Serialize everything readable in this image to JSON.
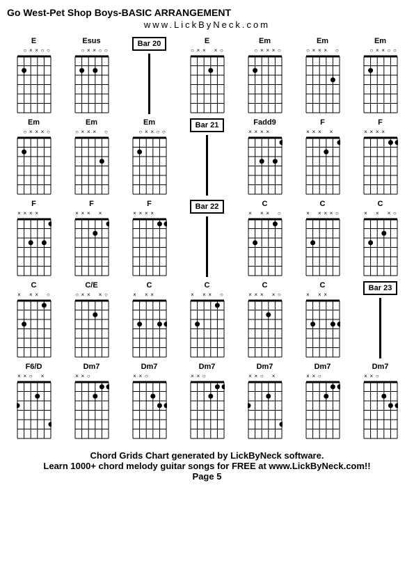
{
  "title": "Go West-Pet Shop Boys-BASIC ARRANGEMENT",
  "subtitle": "www.LickByNeck.com",
  "footer_line1": "Chord Grids Chart generated by LickByNeck software.",
  "footer_line2": "Learn 1000+ chord melody guitar songs for FREE at www.LickByNeck.com!!",
  "footer_page": "Page 5",
  "style": {
    "bg": "#ffffff",
    "fg": "#000000",
    "grid_cols": 7,
    "grid_rows": 5,
    "fret_width": 50,
    "fret_height": 85,
    "string_count": 6,
    "fret_count": 6,
    "dot_radius": 3.5,
    "marker_open": "○",
    "marker_mute": "×",
    "marker_dot": "●"
  },
  "cells": [
    {
      "type": "chord",
      "label": "E",
      "markers": [
        "",
        "o",
        "x",
        "x",
        "o",
        "o"
      ],
      "dots": [
        [
          2,
          2
        ]
      ]
    },
    {
      "type": "chord",
      "label": "Esus",
      "markers": [
        "",
        "o",
        "x",
        "x",
        "o",
        "o"
      ],
      "dots": [
        [
          2,
          2
        ],
        [
          2,
          4
        ]
      ]
    },
    {
      "type": "bar",
      "label": "Bar 20"
    },
    {
      "type": "chord",
      "label": "E",
      "markers": [
        "o",
        "x",
        "x",
        "",
        "x",
        "o"
      ],
      "dots": [
        [
          2,
          4
        ]
      ]
    },
    {
      "type": "chord",
      "label": "Em",
      "markers": [
        "",
        "o",
        "x",
        "x",
        "x",
        "o"
      ],
      "dots": [
        [
          2,
          2
        ]
      ]
    },
    {
      "type": "chord",
      "label": "Em",
      "markers": [
        "o",
        "x",
        "x",
        "x",
        "",
        "o"
      ],
      "dots": [
        [
          3,
          5
        ]
      ]
    },
    {
      "type": "chord",
      "label": "Em",
      "markers": [
        "",
        "o",
        "x",
        "x",
        "o",
        "o"
      ],
      "dots": [
        [
          2,
          2
        ]
      ]
    },
    {
      "type": "chord",
      "label": "Em",
      "markers": [
        "",
        "o",
        "x",
        "x",
        "x",
        "o"
      ],
      "dots": [
        [
          2,
          2
        ]
      ]
    },
    {
      "type": "chord",
      "label": "Em",
      "markers": [
        "o",
        "x",
        "x",
        "x",
        "",
        "o"
      ],
      "dots": [
        [
          3,
          5
        ]
      ]
    },
    {
      "type": "chord",
      "label": "Em",
      "markers": [
        "",
        "o",
        "x",
        "x",
        "o",
        "o"
      ],
      "dots": [
        [
          2,
          2
        ]
      ]
    },
    {
      "type": "bar",
      "label": "Bar 21"
    },
    {
      "type": "chord",
      "label": "Fadd9",
      "markers": [
        "x",
        "x",
        "x",
        "x",
        "",
        ""
      ],
      "dots": [
        [
          1,
          6
        ],
        [
          3,
          5
        ],
        [
          3,
          3
        ]
      ]
    },
    {
      "type": "chord",
      "label": "F",
      "markers": [
        "x",
        "x",
        "x",
        "",
        "x",
        ""
      ],
      "dots": [
        [
          1,
          6
        ],
        [
          2,
          4
        ]
      ]
    },
    {
      "type": "chord",
      "label": "F",
      "markers": [
        "x",
        "x",
        "x",
        "x",
        "",
        ""
      ],
      "dots": [
        [
          1,
          6
        ],
        [
          1,
          5
        ]
      ]
    },
    {
      "type": "chord",
      "label": "F",
      "markers": [
        "x",
        "x",
        "x",
        "x",
        "",
        ""
      ],
      "dots": [
        [
          1,
          6
        ],
        [
          3,
          5
        ],
        [
          3,
          3
        ]
      ]
    },
    {
      "type": "chord",
      "label": "F",
      "markers": [
        "x",
        "x",
        "x",
        "",
        "x",
        ""
      ],
      "dots": [
        [
          1,
          6
        ],
        [
          2,
          4
        ]
      ]
    },
    {
      "type": "chord",
      "label": "F",
      "markers": [
        "x",
        "x",
        "x",
        "x",
        "",
        ""
      ],
      "dots": [
        [
          1,
          6
        ],
        [
          1,
          5
        ]
      ]
    },
    {
      "type": "bar",
      "label": "Bar 22"
    },
    {
      "type": "chord",
      "label": "C",
      "markers": [
        "x",
        "",
        "x",
        "x",
        "",
        "o"
      ],
      "dots": [
        [
          3,
          2
        ],
        [
          1,
          5
        ]
      ]
    },
    {
      "type": "chord",
      "label": "C",
      "markers": [
        "x",
        "",
        "x",
        "x",
        "x",
        "o"
      ],
      "dots": [
        [
          3,
          2
        ]
      ]
    },
    {
      "type": "chord",
      "label": "C",
      "markers": [
        "x",
        "",
        "x",
        "",
        "x",
        "o"
      ],
      "dots": [
        [
          3,
          2
        ],
        [
          2,
          4
        ]
      ]
    },
    {
      "type": "chord",
      "label": "C",
      "markers": [
        "x",
        "",
        "x",
        "x",
        "",
        "o"
      ],
      "dots": [
        [
          3,
          2
        ],
        [
          1,
          5
        ]
      ]
    },
    {
      "type": "chord",
      "label": "C/E",
      "markers": [
        "o",
        "x",
        "x",
        "",
        "x",
        "o"
      ],
      "dots": [
        [
          2,
          4
        ]
      ]
    },
    {
      "type": "chord",
      "label": "C",
      "markers": [
        "x",
        "",
        "x",
        "x",
        "",
        ""
      ],
      "dots": [
        [
          3,
          2
        ],
        [
          3,
          5
        ],
        [
          3,
          6
        ]
      ]
    },
    {
      "type": "chord",
      "label": "C",
      "markers": [
        "x",
        "",
        "x",
        "x",
        "",
        "o"
      ],
      "dots": [
        [
          3,
          2
        ],
        [
          1,
          5
        ]
      ]
    },
    {
      "type": "chord",
      "label": "C",
      "markers": [
        "x",
        "x",
        "x",
        "",
        "x",
        "o"
      ],
      "dots": [
        [
          2,
          4
        ]
      ]
    },
    {
      "type": "chord",
      "label": "C",
      "markers": [
        "x",
        "",
        "x",
        "x",
        "",
        ""
      ],
      "dots": [
        [
          3,
          2
        ],
        [
          3,
          5
        ],
        [
          3,
          6
        ]
      ]
    },
    {
      "type": "bar",
      "label": "Bar 23"
    },
    {
      "type": "chord",
      "label": "F6/D",
      "markers": [
        "x",
        "x",
        "o",
        "",
        "x",
        ""
      ],
      "dots": [
        [
          2,
          4
        ],
        [
          5,
          6
        ],
        [
          3,
          1
        ]
      ]
    },
    {
      "type": "chord",
      "label": "Dm7",
      "markers": [
        "x",
        "x",
        "o",
        "",
        "",
        ""
      ],
      "dots": [
        [
          2,
          4
        ],
        [
          1,
          5
        ],
        [
          1,
          6
        ]
      ]
    },
    {
      "type": "chord",
      "label": "Dm7",
      "markers": [
        "x",
        "x",
        "o",
        "",
        "",
        ""
      ],
      "dots": [
        [
          2,
          4
        ],
        [
          3,
          5
        ],
        [
          3,
          6
        ]
      ]
    },
    {
      "type": "chord",
      "label": "Dm7",
      "markers": [
        "x",
        "x",
        "o",
        "",
        "",
        ""
      ],
      "dots": [
        [
          2,
          4
        ],
        [
          1,
          5
        ],
        [
          1,
          6
        ]
      ]
    },
    {
      "type": "chord",
      "label": "Dm7",
      "markers": [
        "x",
        "x",
        "o",
        "",
        "x",
        ""
      ],
      "dots": [
        [
          2,
          4
        ],
        [
          5,
          6
        ],
        [
          3,
          1
        ]
      ]
    },
    {
      "type": "chord",
      "label": "Dm7",
      "markers": [
        "x",
        "x",
        "o",
        "",
        "",
        ""
      ],
      "dots": [
        [
          2,
          4
        ],
        [
          1,
          5
        ],
        [
          1,
          6
        ]
      ]
    },
    {
      "type": "chord",
      "label": "Dm7",
      "markers": [
        "x",
        "x",
        "o",
        "",
        "",
        ""
      ],
      "dots": [
        [
          2,
          4
        ],
        [
          3,
          5
        ],
        [
          3,
          6
        ]
      ]
    }
  ]
}
